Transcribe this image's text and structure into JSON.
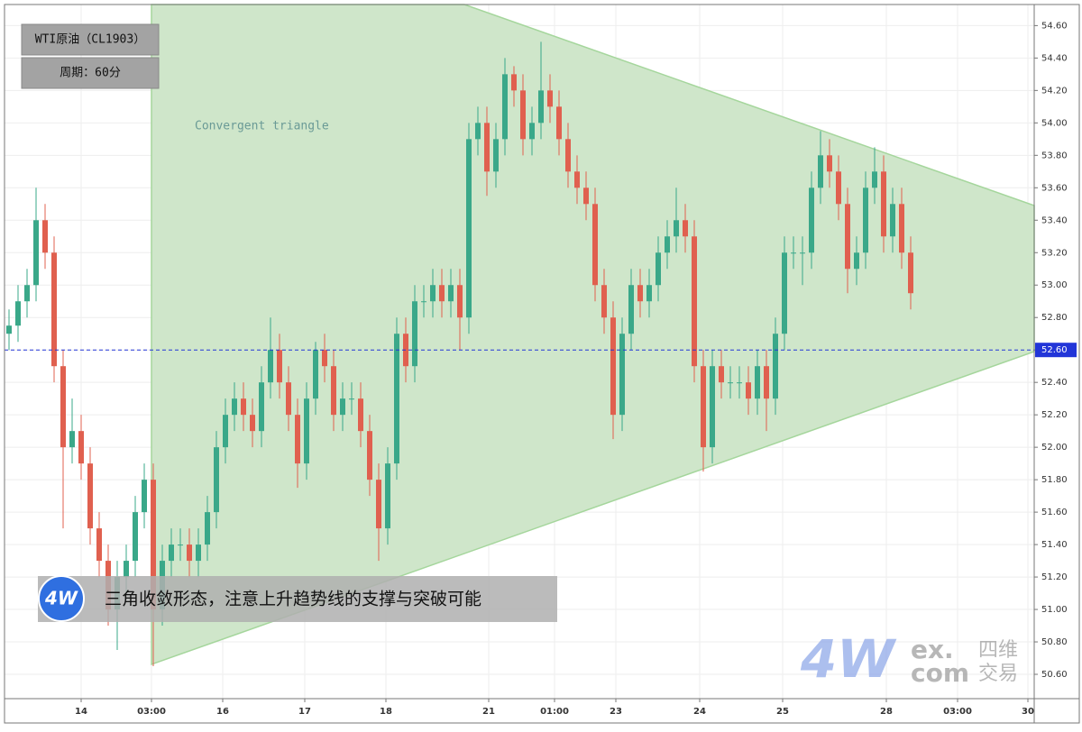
{
  "chart_data": {
    "type": "candlestick",
    "title": "WTI原油（CL1903）",
    "subtitle": "周期：60分",
    "annotation": "Convergent triangle",
    "caption": "三角收敛形态，注意上升趋势线的支撑与突破可能",
    "logo": "4W",
    "watermark": {
      "mark": "4W",
      "top": "ex.",
      "bottom": "com",
      "cn_top": "四维",
      "cn_bottom": "交易"
    },
    "up_color": "#3aa889",
    "down_color": "#e0604f",
    "grid": true,
    "hline": {
      "value": 52.6,
      "label": "52.60",
      "color": "#2235d8"
    },
    "xlim": [
      -0.5,
      113.7
    ],
    "ylim": [
      50.45,
      54.73
    ],
    "xticks": [
      {
        "value": 8,
        "label": "14"
      },
      {
        "value": 15.8,
        "label": "03:00"
      },
      {
        "value": 23.7,
        "label": "16"
      },
      {
        "value": 32.8,
        "label": "17"
      },
      {
        "value": 41.8,
        "label": "18"
      },
      {
        "value": 53.2,
        "label": "21"
      },
      {
        "value": 60.5,
        "label": "01:00"
      },
      {
        "value": 67.3,
        "label": "23"
      },
      {
        "value": 76.6,
        "label": "24"
      },
      {
        "value": 85.8,
        "label": "25"
      },
      {
        "value": 97.3,
        "label": "28"
      },
      {
        "value": 105.2,
        "label": "03:00"
      },
      {
        "value": 113,
        "label": "30"
      }
    ],
    "yticks": [
      {
        "value": 50.6,
        "label": "50.60"
      },
      {
        "value": 50.8,
        "label": "50.80"
      },
      {
        "value": 51,
        "label": "51.00"
      },
      {
        "value": 51.2,
        "label": "51.20"
      },
      {
        "value": 51.4,
        "label": "51.40"
      },
      {
        "value": 51.6,
        "label": "51.60"
      },
      {
        "value": 51.8,
        "label": "51.80"
      },
      {
        "value": 52,
        "label": "52.00"
      },
      {
        "value": 52.2,
        "label": "52.20"
      },
      {
        "value": 52.4,
        "label": "52.40"
      },
      {
        "value": 52.6,
        "label": "52.60"
      },
      {
        "value": 52.8,
        "label": "52.80"
      },
      {
        "value": 53,
        "label": "53.00"
      },
      {
        "value": 53.2,
        "label": "53.20"
      },
      {
        "value": 53.4,
        "label": "53.40"
      },
      {
        "value": 53.6,
        "label": "53.60"
      },
      {
        "value": 53.8,
        "label": "53.80"
      },
      {
        "value": 54,
        "label": "54.00"
      },
      {
        "value": 54.2,
        "label": "54.20"
      },
      {
        "value": 54.4,
        "label": "54.40"
      },
      {
        "value": 54.6,
        "label": "54.60"
      }
    ],
    "open": [
      52.7,
      52.75,
      52.9,
      53.0,
      53.4,
      53.2,
      52.5,
      52.0,
      52.1,
      51.9,
      51.5,
      51.3,
      51.0,
      51.2,
      51.3,
      51.6,
      51.8,
      51.0,
      51.3,
      51.4,
      51.4,
      51.3,
      51.4,
      51.6,
      52.0,
      52.2,
      52.3,
      52.2,
      52.1,
      52.4,
      52.6,
      52.4,
      52.2,
      51.9,
      52.3,
      52.6,
      52.5,
      52.2,
      52.3,
      52.3,
      52.1,
      51.8,
      51.5,
      51.9,
      52.7,
      52.5,
      52.9,
      52.9,
      53.0,
      52.9,
      53.0,
      52.8,
      53.9,
      54.0,
      53.7,
      53.9,
      54.3,
      54.2,
      53.9,
      54.0,
      54.2,
      54.1,
      53.9,
      53.7,
      53.6,
      53.5,
      53.0,
      52.8,
      52.2,
      52.7,
      53.0,
      52.9,
      53.0,
      53.2,
      53.3,
      53.4,
      53.3,
      52.5,
      52.0,
      52.5,
      52.4,
      52.4,
      52.4,
      52.3,
      52.5,
      52.3,
      52.7,
      53.2,
      53.2,
      53.2,
      53.6,
      53.8,
      53.7,
      53.5,
      53.1,
      53.2,
      53.6,
      53.7,
      53.3,
      53.5,
      53.2
    ],
    "high": [
      52.85,
      53.0,
      53.1,
      53.6,
      53.5,
      53.3,
      52.6,
      52.3,
      52.2,
      52.0,
      51.6,
      51.4,
      51.3,
      51.4,
      51.7,
      51.9,
      51.9,
      51.4,
      51.5,
      51.5,
      51.5,
      51.5,
      51.7,
      52.1,
      52.3,
      52.4,
      52.4,
      52.3,
      52.5,
      52.8,
      52.7,
      52.5,
      52.3,
      52.4,
      52.65,
      52.7,
      52.6,
      52.4,
      52.4,
      52.4,
      52.2,
      51.9,
      52.0,
      52.8,
      52.8,
      53.0,
      53.0,
      53.1,
      53.1,
      53.1,
      53.1,
      54.0,
      54.1,
      54.1,
      54.0,
      54.4,
      54.35,
      54.3,
      54.1,
      54.5,
      54.3,
      54.2,
      54.0,
      53.8,
      53.7,
      53.6,
      53.1,
      52.9,
      52.8,
      53.1,
      53.1,
      53.1,
      53.3,
      53.4,
      53.6,
      53.5,
      53.4,
      52.6,
      52.6,
      52.6,
      52.5,
      52.5,
      52.5,
      52.6,
      52.6,
      52.8,
      53.3,
      53.3,
      53.3,
      53.7,
      53.95,
      53.9,
      53.8,
      53.6,
      53.3,
      53.7,
      53.85,
      53.8,
      53.6,
      53.6,
      53.3
    ],
    "low": [
      52.6,
      52.65,
      52.8,
      52.9,
      53.1,
      52.4,
      51.5,
      51.9,
      51.8,
      51.4,
      51.2,
      50.9,
      50.75,
      51.1,
      51.2,
      51.5,
      50.65,
      50.9,
      51.2,
      51.3,
      51.2,
      51.2,
      51.3,
      51.5,
      51.9,
      52.1,
      52.1,
      52.0,
      52.0,
      52.3,
      52.3,
      52.1,
      51.75,
      51.8,
      52.2,
      52.4,
      52.1,
      52.1,
      52.2,
      52.0,
      51.7,
      51.3,
      51.4,
      51.8,
      52.4,
      52.4,
      52.8,
      52.8,
      52.8,
      52.8,
      52.6,
      52.7,
      53.8,
      53.55,
      53.6,
      53.8,
      54.1,
      53.8,
      53.8,
      53.9,
      54.0,
      53.8,
      53.6,
      53.5,
      53.4,
      52.9,
      52.7,
      52.05,
      52.1,
      52.6,
      52.8,
      52.8,
      52.9,
      53.1,
      53.2,
      53.2,
      52.4,
      51.85,
      51.9,
      52.3,
      52.3,
      52.3,
      52.2,
      52.2,
      52.1,
      52.2,
      52.6,
      53.1,
      53.0,
      53.1,
      53.5,
      53.6,
      53.4,
      52.95,
      53.0,
      53.1,
      53.5,
      53.2,
      53.2,
      53.1,
      52.85
    ],
    "close": [
      52.75,
      52.9,
      53.0,
      53.4,
      53.2,
      52.5,
      52.0,
      52.1,
      51.9,
      51.5,
      51.3,
      51.0,
      51.2,
      51.3,
      51.6,
      51.8,
      51.0,
      51.3,
      51.4,
      51.4,
      51.3,
      51.4,
      51.6,
      52.0,
      52.2,
      52.3,
      52.2,
      52.1,
      52.4,
      52.6,
      52.4,
      52.2,
      51.9,
      52.3,
      52.6,
      52.5,
      52.2,
      52.3,
      52.3,
      52.1,
      51.8,
      51.5,
      51.9,
      52.7,
      52.5,
      52.9,
      52.9,
      53.0,
      52.9,
      53.0,
      52.8,
      53.9,
      54.0,
      53.7,
      53.9,
      54.3,
      54.2,
      53.9,
      54.0,
      54.2,
      54.1,
      53.9,
      53.7,
      53.6,
      53.5,
      53.0,
      52.8,
      52.2,
      52.7,
      53.0,
      52.9,
      53.0,
      53.2,
      53.3,
      53.4,
      53.3,
      52.5,
      52.0,
      52.5,
      52.4,
      52.4,
      52.4,
      52.3,
      52.5,
      52.3,
      52.7,
      53.2,
      53.2,
      53.2,
      53.6,
      53.8,
      53.7,
      53.5,
      53.1,
      53.2,
      53.6,
      53.7,
      53.3,
      53.5,
      53.2,
      52.95
    ]
  }
}
